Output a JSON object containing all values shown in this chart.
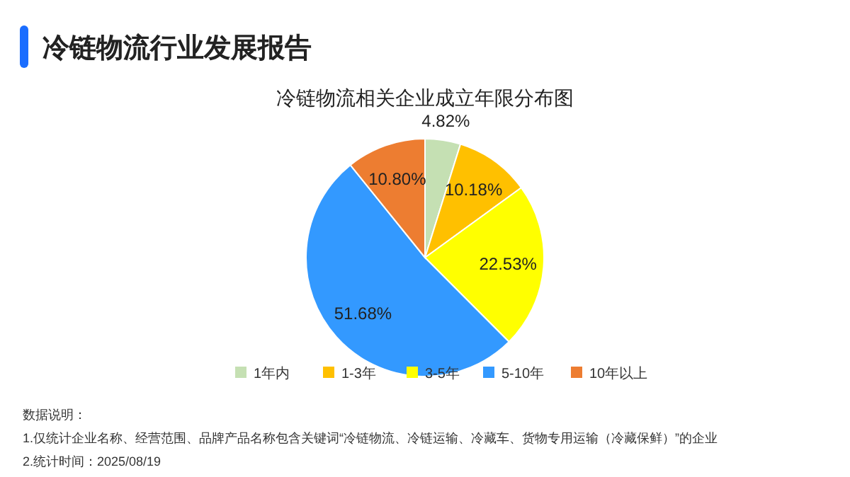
{
  "chart_data": {
    "type": "pie",
    "title": "冷链物流行业发展报告",
    "subtitle": "冷链物流相关企业成立年限分布图",
    "categories": [
      "1年内",
      "1-3年",
      "3-5年",
      "5-10年",
      "10年以上"
    ],
    "values": [
      4.82,
      10.18,
      22.53,
      51.68,
      10.8
    ],
    "colors": [
      "#c5e0b3",
      "#ffc000",
      "#ffff00",
      "#3399ff",
      "#ed7d31"
    ],
    "value_labels": [
      "4.82%",
      "10.18%",
      "22.53%",
      "51.68%",
      "10.80%"
    ],
    "legend": "bottom",
    "annotations": [
      "数据说明：",
      "1.仅统计企业名称、经营范围、品牌产品名称包含关键词“冷链物流、冷链运输、冷藏车、货物专用运输（冷藏保鲜）”的企业",
      "2.统计时间：2025/08/19"
    ]
  }
}
